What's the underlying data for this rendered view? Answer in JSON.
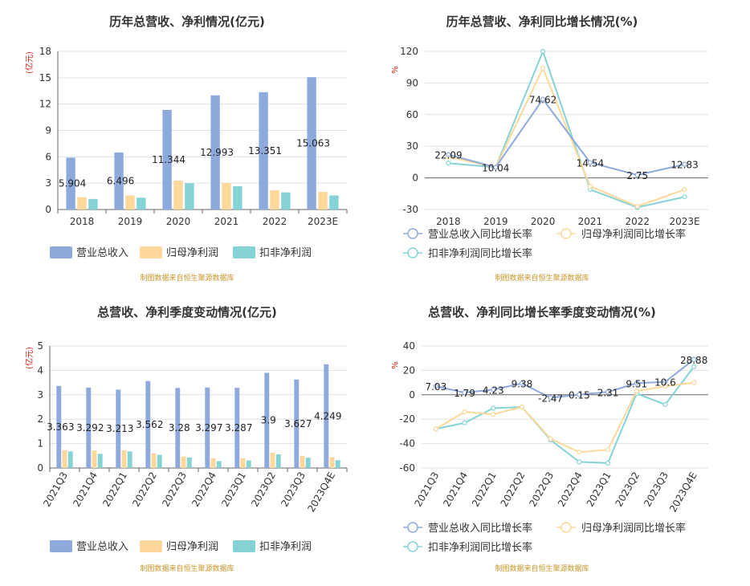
{
  "colors": {
    "revenue": "#8eaadc",
    "parent_profit": "#fdd89a",
    "deducted_profit": "#86d3d6"
  },
  "chart_data": [
    {
      "type": "bar",
      "title": "历年总营收、净利情况(亿元)",
      "ylabel": "(亿元)",
      "ylim": [
        0,
        18
      ],
      "yticks": [
        0,
        3,
        6,
        9,
        12,
        15,
        18
      ],
      "categories": [
        "2018",
        "2019",
        "2020",
        "2021",
        "2022",
        "2023E"
      ],
      "series": [
        {
          "name": "营业总收入",
          "values": [
            5.904,
            6.496,
            11.344,
            12.993,
            13.351,
            15.063
          ]
        },
        {
          "name": "归母净利润",
          "values": [
            1.4,
            1.6,
            3.3,
            3.0,
            2.2,
            2.0
          ]
        },
        {
          "name": "扣非净利润",
          "values": [
            1.2,
            1.35,
            3.0,
            2.65,
            1.95,
            1.6
          ]
        }
      ],
      "data_labels": [
        "5.904",
        "6.496",
        "11.344",
        "12.993",
        "13.351",
        "15.063"
      ],
      "source": "制图数据来自恒生聚源数据库",
      "grid": true,
      "legend": "bottom"
    },
    {
      "type": "line",
      "title": "历年总营收、净利同比增长情况(%)",
      "ylabel": "%",
      "ylim": [
        -30,
        120
      ],
      "yticks": [
        -30,
        0,
        30,
        60,
        90,
        120
      ],
      "categories": [
        "2018",
        "2019",
        "2020",
        "2021",
        "2022",
        "2023E"
      ],
      "series": [
        {
          "name": "营业总收入同比增长率",
          "values": [
            22.09,
            10.04,
            74.62,
            14.54,
            2.75,
            12.83
          ]
        },
        {
          "name": "归母净利润同比增长率",
          "values": [
            20,
            10,
            104,
            -8,
            -27,
            -11
          ]
        },
        {
          "name": "扣非净利润同比增长率",
          "values": [
            14,
            10,
            120,
            -11,
            -28,
            -18
          ]
        }
      ],
      "data_labels": [
        "22.09",
        "10.04",
        "74.62",
        "14.54",
        "2.75",
        "12.83"
      ],
      "source": "制图数据来自恒生聚源数据库",
      "grid": true,
      "legend": "bottom"
    },
    {
      "type": "bar",
      "title": "总营收、净利季度变动情况(亿元)",
      "ylabel": "(亿元)",
      "ylim": [
        0,
        5
      ],
      "yticks": [
        0,
        1,
        2,
        3,
        4,
        5
      ],
      "categories": [
        "2021Q3",
        "2021Q4",
        "2022Q1",
        "2022Q2",
        "2022Q3",
        "2022Q4",
        "2023Q1",
        "2023Q2",
        "2023Q3",
        "2023Q4E"
      ],
      "series": [
        {
          "name": "营业总收入",
          "values": [
            3.363,
            3.292,
            3.213,
            3.562,
            3.28,
            3.297,
            3.287,
            3.9,
            3.627,
            4.249
          ]
        },
        {
          "name": "归母净利润",
          "values": [
            0.73,
            0.72,
            0.73,
            0.6,
            0.47,
            0.4,
            0.4,
            0.63,
            0.5,
            0.44
          ]
        },
        {
          "name": "扣非净利润",
          "values": [
            0.68,
            0.58,
            0.68,
            0.54,
            0.43,
            0.28,
            0.31,
            0.56,
            0.42,
            0.32
          ]
        }
      ],
      "data_labels": [
        "3.363",
        "3.292",
        "3.213",
        "3.562",
        "3.28",
        "3.297",
        "3.287",
        "3.9",
        "3.627",
        "4.249"
      ],
      "source": "制图数据来自恒生聚源数据库",
      "grid": true,
      "legend": "bottom"
    },
    {
      "type": "line",
      "title": "总营收、净利同比增长率季度变动情况(%)",
      "ylabel": "%",
      "ylim": [
        -60,
        40
      ],
      "yticks": [
        -60,
        -40,
        -20,
        0,
        20,
        40
      ],
      "categories": [
        "2021Q3",
        "2021Q4",
        "2022Q1",
        "2022Q2",
        "2022Q3",
        "2022Q4",
        "2023Q1",
        "2023Q2",
        "2023Q3",
        "2023Q4E"
      ],
      "series": [
        {
          "name": "营业总收入同比增长率",
          "values": [
            7.03,
            1.79,
            4.23,
            9.38,
            -2.47,
            0.15,
            2.31,
            9.51,
            10.6,
            28.88
          ]
        },
        {
          "name": "归母净利润同比增长率",
          "values": [
            -28,
            -14,
            -16,
            -10,
            -36,
            -47,
            -45,
            3,
            7,
            10
          ]
        },
        {
          "name": "扣非净利润同比增长率",
          "values": [
            -28,
            -23,
            -11,
            -10,
            -37,
            -55,
            -56,
            1,
            -8,
            23
          ]
        }
      ],
      "data_labels": [
        "7.03",
        "1.79",
        "4.23",
        "9.38",
        "-2.47",
        "0.15",
        "2.31",
        "9.51",
        "10.6",
        "28.88"
      ],
      "source": "制图数据来自恒生聚源数据库",
      "grid": true,
      "legend": "bottom"
    }
  ]
}
